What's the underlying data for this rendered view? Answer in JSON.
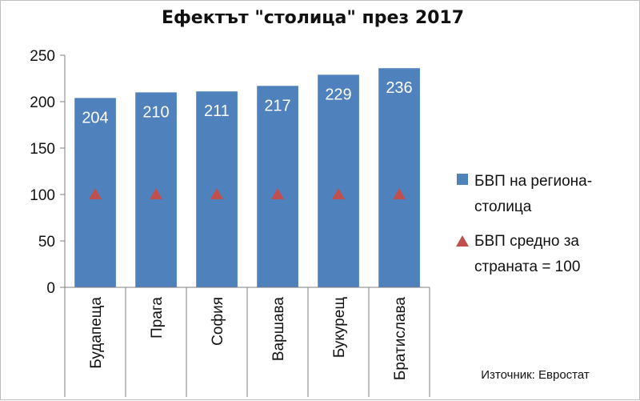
{
  "chart_data": {
    "type": "bar",
    "title": "Ефектът \"столица\" през 2017",
    "categories": [
      "Будапеща",
      "Прага",
      "София",
      "Варшава",
      "Букурещ",
      "Братислава"
    ],
    "series": [
      {
        "name": "БВП на региона-столица",
        "values": [
          204,
          210,
          211,
          217,
          229,
          236
        ],
        "color": "#4f81bd",
        "mark": "bar"
      },
      {
        "name": "БВП средно за страната = 100",
        "values": [
          100,
          100,
          100,
          100,
          100,
          100
        ],
        "color": "#c0504d",
        "mark": "triangle"
      }
    ],
    "legend_lines": [
      [
        "БВП на региона-",
        "столица"
      ],
      [
        "БВП средно за",
        "страната = 100"
      ]
    ],
    "ylim": [
      0,
      250
    ],
    "yticks": [
      0,
      50,
      100,
      150,
      200,
      250
    ],
    "grid": false,
    "legend": "right",
    "source": "Източник: Евростат"
  }
}
